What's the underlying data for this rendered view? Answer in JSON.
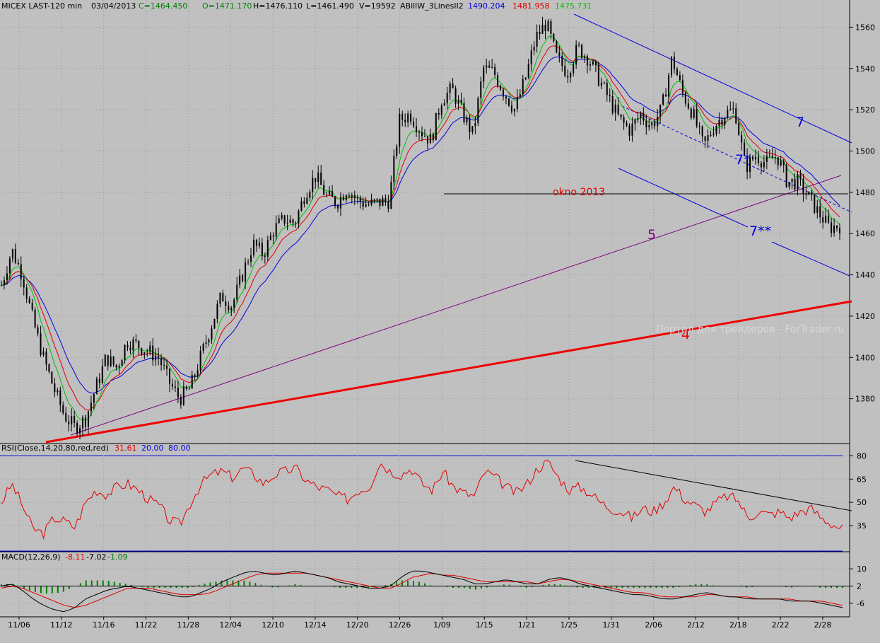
{
  "header": {
    "symbol": "MICEX LAST-120 min",
    "date": "03/04/2013",
    "close": "C=1464.450",
    "open": "O=1471.170",
    "high": "H=1476.110",
    "low": "L=1461.490",
    "volume": "V=19592",
    "indicator": "ABillW_3LinesII2",
    "ind_values": [
      "1490.204",
      "1481.958",
      "1475.731"
    ]
  },
  "rsi_header": {
    "label": "RSI(Close,14,20,80,red,red)",
    "value": "31.61",
    "low": "20.00",
    "high": "80.00"
  },
  "macd_header": {
    "label": "MACD(12,26,9)",
    "values": [
      "-8.11",
      "-7.02",
      "-1.09"
    ]
  },
  "annotations": {
    "okno": "okno 2013",
    "line5": "5",
    "line4": "4",
    "line7": "7",
    "line7s": "7*",
    "line7ss": "7**",
    "watermark": "Портал для трейдеров - ForTrader.ru"
  },
  "colors": {
    "background": "#c0c0c0",
    "ma_fast": "#00c000",
    "ma_mid": "#e00000",
    "ma_slow": "#0000e0",
    "rsi": "#e00000",
    "macd": "#000000",
    "macd_signal": "#e00000",
    "histogram": "#008000",
    "trend_4": "#ee0000",
    "trend_5": "#800080",
    "channel": "#0000e0"
  },
  "chart_data": {
    "type": "line",
    "subtype": "candlestick-with-indicators",
    "xlabels": [
      "11/06",
      "11/12",
      "11/16",
      "11/22",
      "11/28",
      "12/04",
      "12/10",
      "12/14",
      "12/20",
      "12/26",
      "1/09",
      "1/15",
      "1/21",
      "1/25",
      "1/31",
      "2/06",
      "2/12",
      "2/18",
      "2/22",
      "2/28"
    ],
    "price_axis": {
      "ticks": [
        1380,
        1400,
        1420,
        1440,
        1460,
        1480,
        1500,
        1520,
        1540,
        1560
      ],
      "range": [
        1360,
        1567
      ]
    },
    "price_path": [
      1435,
      1452,
      1440,
      1418,
      1400,
      1385,
      1372,
      1366,
      1370,
      1385,
      1400,
      1395,
      1408,
      1406,
      1403,
      1400,
      1388,
      1380,
      1385,
      1400,
      1415,
      1430,
      1425,
      1440,
      1455,
      1450,
      1462,
      1467,
      1465,
      1480,
      1488,
      1478,
      1475,
      1482,
      1476,
      1474,
      1475,
      1476,
      1515,
      1518,
      1510,
      1505,
      1525,
      1530,
      1518,
      1508,
      1540,
      1538,
      1528,
      1520,
      1535,
      1555,
      1562,
      1545,
      1538,
      1550,
      1545,
      1535,
      1525,
      1515,
      1510,
      1518,
      1512,
      1520,
      1545,
      1528,
      1518,
      1502,
      1512,
      1518,
      1520,
      1492,
      1498,
      1494,
      1498,
      1485,
      1485,
      1478,
      1470,
      1463,
      1464
    ],
    "rsi": {
      "ticks": [
        35,
        50,
        65,
        80
      ],
      "range": [
        20,
        82
      ],
      "values": [
        50,
        62,
        48,
        33,
        30,
        40,
        38,
        34,
        50,
        58,
        55,
        60,
        62,
        58,
        52,
        48,
        38,
        36,
        50,
        62,
        68,
        70,
        66,
        72,
        68,
        62,
        68,
        70,
        72,
        64,
        60,
        58,
        54,
        52,
        58,
        60,
        76,
        70,
        68,
        72,
        62,
        58,
        70,
        60,
        56,
        54,
        70,
        66,
        60,
        56,
        62,
        72,
        76,
        66,
        58,
        60,
        56,
        50,
        46,
        44,
        40,
        46,
        44,
        50,
        60,
        52,
        48,
        44,
        50,
        54,
        52,
        40,
        44,
        42,
        44,
        40,
        44,
        46,
        40,
        36,
        33
      ]
    },
    "macd": {
      "ticks": [
        -6,
        2,
        10
      ],
      "range": [
        -11,
        14
      ],
      "macd": [
        2,
        3,
        0,
        -4,
        -7,
        -9,
        -10,
        -8,
        -4,
        -2,
        0,
        1,
        2,
        1,
        0,
        -1,
        -2,
        -3,
        -3,
        -1,
        1,
        4,
        6,
        8,
        9,
        8,
        7,
        8,
        9,
        8,
        7,
        6,
        4,
        3,
        2,
        1,
        1,
        2,
        6,
        9,
        9,
        8,
        7,
        6,
        5,
        3,
        3,
        4,
        5,
        4,
        3,
        3,
        5,
        6,
        5,
        3,
        2,
        1,
        0,
        -1,
        -2,
        -2,
        -3,
        -4,
        -4,
        -3,
        -2,
        -1,
        -2,
        -3,
        -3,
        -4,
        -4,
        -4,
        -4,
        -5,
        -5,
        -5,
        -6,
        -7,
        -8
      ],
      "signal": [
        1,
        2,
        1,
        -1,
        -3,
        -5,
        -7,
        -8,
        -7,
        -5,
        -3,
        -1,
        1,
        1,
        1,
        0,
        -1,
        -2,
        -2,
        -2,
        -1,
        1,
        3,
        5,
        7,
        8,
        8,
        8,
        8,
        8,
        7,
        6,
        5,
        4,
        3,
        2,
        1,
        1,
        3,
        6,
        7,
        8,
        7,
        7,
        6,
        5,
        4,
        4,
        4,
        4,
        4,
        3,
        4,
        5,
        5,
        4,
        3,
        2,
        1,
        0,
        -1,
        -1,
        -2,
        -3,
        -3,
        -3,
        -3,
        -2,
        -2,
        -3,
        -3,
        -3,
        -4,
        -4,
        -4,
        -4,
        -5,
        -5,
        -5,
        -6,
        -7
      ]
    }
  }
}
